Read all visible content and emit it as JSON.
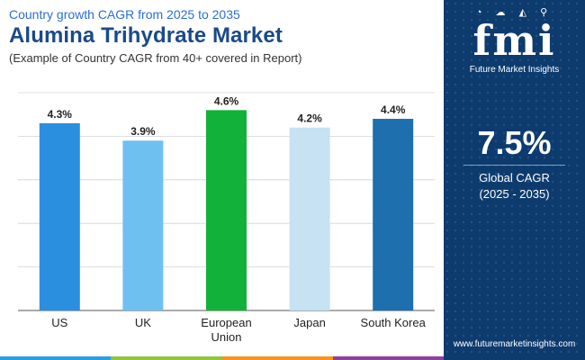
{
  "header": {
    "subtitle": "Country growth CAGR from 2025 to 2035",
    "title": "Alumina Trihydrate Market",
    "note": "(Example of Country CAGR from 40+ covered in Report)"
  },
  "chart_data": {
    "type": "bar",
    "categories": [
      "US",
      "UK",
      "European Union",
      "Japan",
      "South Korea"
    ],
    "category_lines": [
      [
        "US"
      ],
      [
        "UK"
      ],
      [
        "European",
        "Union"
      ],
      [
        "Japan"
      ],
      [
        "South Korea"
      ]
    ],
    "values": [
      4.3,
      3.9,
      4.6,
      4.2,
      4.4
    ],
    "value_labels": [
      "4.3%",
      "3.9%",
      "4.6%",
      "4.2%",
      "4.4%"
    ],
    "colors": [
      "#2b8fdf",
      "#6ec0f0",
      "#12b23a",
      "#c6e2f3",
      "#1d6fae"
    ],
    "ylim": [
      0,
      5
    ],
    "grid": true,
    "xlabel": "",
    "ylabel": ""
  },
  "panel": {
    "logo_text": "fmi",
    "logo_icons": "◔ ☁ ◭ ⚲",
    "brand": "Future Market Insights",
    "global_value": "7.5%",
    "global_label": "Global CAGR",
    "global_range": "(2025 - 2035)",
    "url": "www.futuremarketinsights.com",
    "bg_color": "#0d3b6e"
  },
  "bottom_bar_colors": [
    "#2aa0e0",
    "#8dc63f",
    "#f7941d",
    "#8e3fa0"
  ]
}
